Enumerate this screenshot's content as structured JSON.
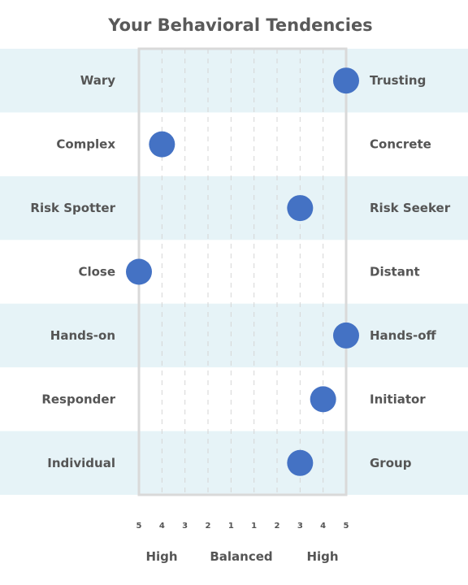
{
  "chart_data": {
    "type": "scatter",
    "title": "Your Behavioral Tendencies",
    "tick_labels": [
      "5",
      "4",
      "3",
      "2",
      "1",
      "1",
      "2",
      "3",
      "4",
      "5"
    ],
    "scale_labels": {
      "left": "High",
      "center": "Balanced",
      "right": "High"
    },
    "rows": [
      {
        "left": "Wary",
        "right": "Trusting",
        "value": 5
      },
      {
        "left": "Complex",
        "right": "Concrete",
        "value": -4
      },
      {
        "left": "Risk Spotter",
        "right": "Risk Seeker",
        "value": 3
      },
      {
        "left": "Close",
        "right": "Distant",
        "value": -5
      },
      {
        "left": "Hands-on",
        "right": "Hands-off",
        "value": 5
      },
      {
        "left": "Responder",
        "right": "Initiator",
        "value": 4
      },
      {
        "left": "Individual",
        "right": "Group",
        "value": 3
      }
    ]
  },
  "colors": {
    "band": "#e6f3f7",
    "dot": "#4472c4",
    "frame": "#d9d9d9",
    "gridline": "#d5d5d5",
    "label": "#555555",
    "title": "#595959"
  }
}
